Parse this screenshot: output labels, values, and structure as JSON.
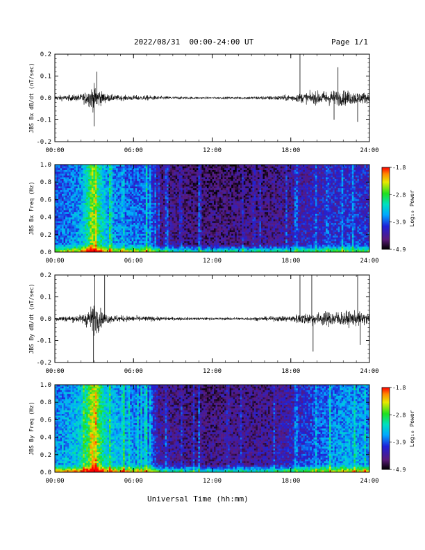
{
  "header": {
    "date_label": "2022/08/31",
    "time_range": "00:00-24:00 UT",
    "page_label": "Page 1/1"
  },
  "xaxis": {
    "label": "Universal Time (hh:mm)",
    "ticks": [
      "00:00",
      "06:00",
      "12:00",
      "18:00",
      "24:00"
    ],
    "range_hours": [
      0,
      24
    ]
  },
  "colorbar": {
    "label": "Log₁₀ Power",
    "ticks": [
      "-1.8",
      "-2.8",
      "-3.9",
      "-4.9"
    ],
    "range": [
      -4.9,
      -1.8
    ]
  },
  "chart_data": [
    {
      "type": "line",
      "ylabel": "JBS Bx dB/dt (nT/sec)",
      "ylim": [
        -0.2,
        0.2
      ],
      "yticks": [
        "0.2",
        "0.1",
        "0.0",
        "-0.1",
        "-0.2"
      ],
      "envelope": {
        "hours": [
          0,
          1,
          2,
          2.5,
          3.0,
          3.3,
          3.6,
          4,
          5,
          6,
          7,
          8,
          10,
          12,
          14,
          16,
          18,
          19,
          20,
          21,
          22,
          23,
          24
        ],
        "amplitude": [
          0.02,
          0.022,
          0.03,
          0.06,
          0.1,
          0.08,
          0.05,
          0.03,
          0.02,
          0.02,
          0.02,
          0.015,
          0.01,
          0.008,
          0.01,
          0.015,
          0.025,
          0.04,
          0.05,
          0.06,
          0.06,
          0.05,
          0.04
        ]
      },
      "spikes": [
        {
          "hour": 3.0,
          "value": -0.13
        },
        {
          "hour": 3.2,
          "value": 0.12
        },
        {
          "hour": 18.7,
          "value": 0.21
        },
        {
          "hour": 21.6,
          "value": 0.14
        },
        {
          "hour": 21.3,
          "value": -0.1
        },
        {
          "hour": 23.1,
          "value": -0.11
        }
      ]
    },
    {
      "type": "heatmap",
      "ylabel": "JBS Bx Freq (Hz)",
      "ylim": [
        0,
        1.0
      ],
      "yticks": [
        "1.0",
        "0.8",
        "0.6",
        "0.4",
        "0.2",
        "0.0"
      ],
      "activity": {
        "hours": [
          0,
          1,
          2,
          2.6,
          3.0,
          3.5,
          4,
          5,
          6,
          7,
          7.5,
          8,
          10,
          12,
          14,
          16,
          18,
          19,
          20,
          21,
          22,
          23,
          24
        ],
        "level": [
          0.35,
          0.38,
          0.45,
          0.62,
          0.72,
          0.58,
          0.45,
          0.4,
          0.38,
          0.38,
          0.3,
          0.18,
          0.15,
          0.14,
          0.15,
          0.16,
          0.2,
          0.24,
          0.25,
          0.28,
          0.3,
          0.3,
          0.28
        ]
      },
      "bright_stripes_hours": [
        2.8,
        3.1,
        4.2,
        5.2,
        7.0,
        7.3,
        8.5,
        9.6,
        11.0,
        15.2,
        18.5,
        19.9,
        20.8
      ]
    },
    {
      "type": "line",
      "ylabel": "JBS By dB/dt (nT/sec)",
      "ylim": [
        -0.2,
        0.2
      ],
      "yticks": [
        "0.2",
        "0.1",
        "0.0",
        "-0.1",
        "-0.2"
      ],
      "envelope": {
        "hours": [
          0,
          1,
          2,
          2.5,
          3.0,
          3.3,
          3.6,
          4,
          5,
          6,
          7,
          8,
          10,
          12,
          14,
          16,
          18,
          19,
          20,
          21,
          22,
          23,
          24
        ],
        "amplitude": [
          0.02,
          0.022,
          0.03,
          0.07,
          0.12,
          0.1,
          0.06,
          0.035,
          0.025,
          0.022,
          0.02,
          0.015,
          0.012,
          0.01,
          0.012,
          0.015,
          0.025,
          0.045,
          0.05,
          0.06,
          0.06,
          0.055,
          0.045
        ]
      },
      "spikes": [
        {
          "hour": 2.95,
          "value": -0.22
        },
        {
          "hour": 3.05,
          "value": 0.21
        },
        {
          "hour": 3.8,
          "value": 0.2
        },
        {
          "hour": 18.7,
          "value": 0.21
        },
        {
          "hour": 19.6,
          "value": 0.21
        },
        {
          "hour": 19.7,
          "value": -0.15
        },
        {
          "hour": 23.1,
          "value": 0.2
        },
        {
          "hour": 23.3,
          "value": -0.12
        }
      ]
    },
    {
      "type": "heatmap",
      "ylabel": "JBS By Freq (Hz)",
      "ylim": [
        0,
        1.0
      ],
      "yticks": [
        "1.0",
        "0.8",
        "0.6",
        "0.4",
        "0.2",
        "0.0"
      ],
      "activity": {
        "hours": [
          0,
          1,
          2,
          2.6,
          3.0,
          3.5,
          4,
          5,
          6,
          7,
          7.5,
          8,
          10,
          12,
          14,
          16,
          18,
          19,
          20,
          21,
          22,
          23,
          24
        ],
        "level": [
          0.42,
          0.45,
          0.52,
          0.7,
          0.8,
          0.65,
          0.52,
          0.46,
          0.42,
          0.4,
          0.32,
          0.2,
          0.17,
          0.16,
          0.17,
          0.18,
          0.24,
          0.3,
          0.35,
          0.4,
          0.44,
          0.45,
          0.4
        ]
      },
      "bright_stripes_hours": [
        2.8,
        3.1,
        4.2,
        5.2,
        7.0,
        7.3,
        8.5,
        11.0,
        13.2,
        18.5,
        19.9,
        21.0
      ]
    }
  ]
}
